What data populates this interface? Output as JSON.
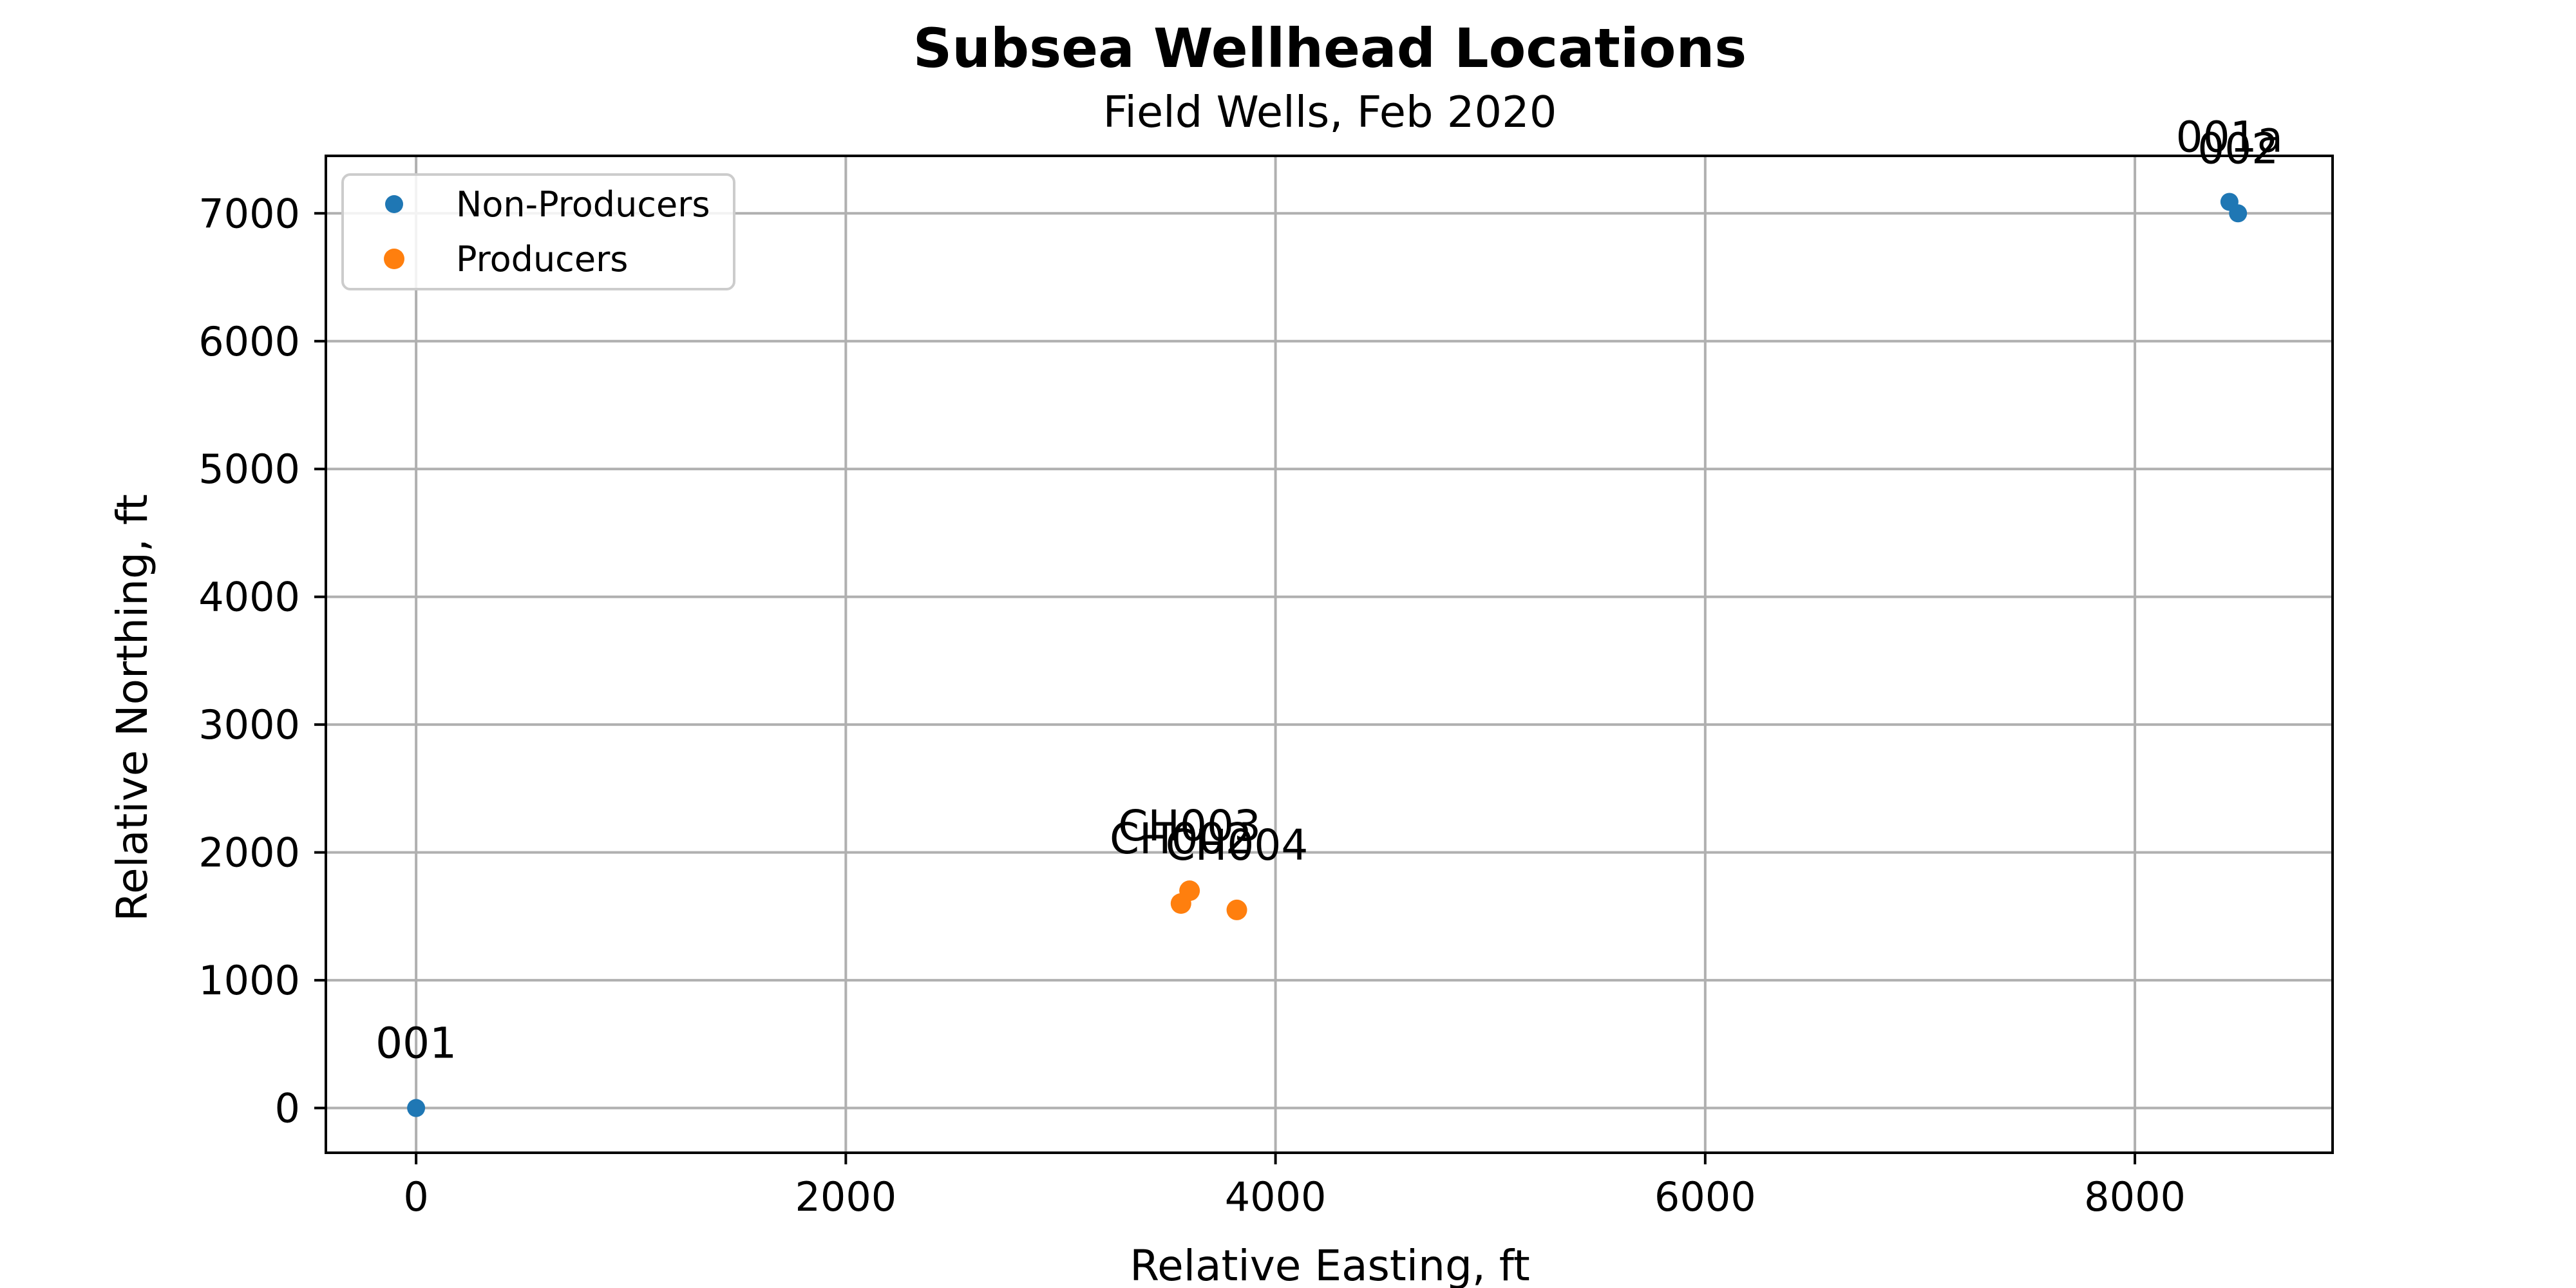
{
  "chart_data": {
    "type": "scatter",
    "title": "Subsea Wellhead Locations",
    "subtitle": "Field Wells, Feb 2020",
    "xlabel": "Relative Easting, ft",
    "ylabel": "Relative Northing, ft",
    "xlim": [
      -420,
      8920
    ],
    "ylim": [
      -350,
      7450
    ],
    "xticks": [
      0,
      2000,
      4000,
      6000,
      8000
    ],
    "yticks": [
      0,
      1000,
      2000,
      3000,
      4000,
      5000,
      6000,
      7000
    ],
    "grid": true,
    "legend_position": "top-left",
    "series": [
      {
        "name": "Non-Producers",
        "color": "#1f77b4",
        "points": [
          {
            "x": 0,
            "y": 0,
            "label": "001"
          },
          {
            "x": 8440,
            "y": 7090,
            "label": "001a"
          },
          {
            "x": 8480,
            "y": 7000,
            "label": "002"
          }
        ]
      },
      {
        "name": "Producers",
        "color": "#ff7f0e",
        "points": [
          {
            "x": 3600,
            "y": 1700,
            "label": "CH003"
          },
          {
            "x": 3560,
            "y": 1600,
            "label": "CH002"
          },
          {
            "x": 3820,
            "y": 1550,
            "label": "CH004"
          }
        ]
      }
    ]
  }
}
